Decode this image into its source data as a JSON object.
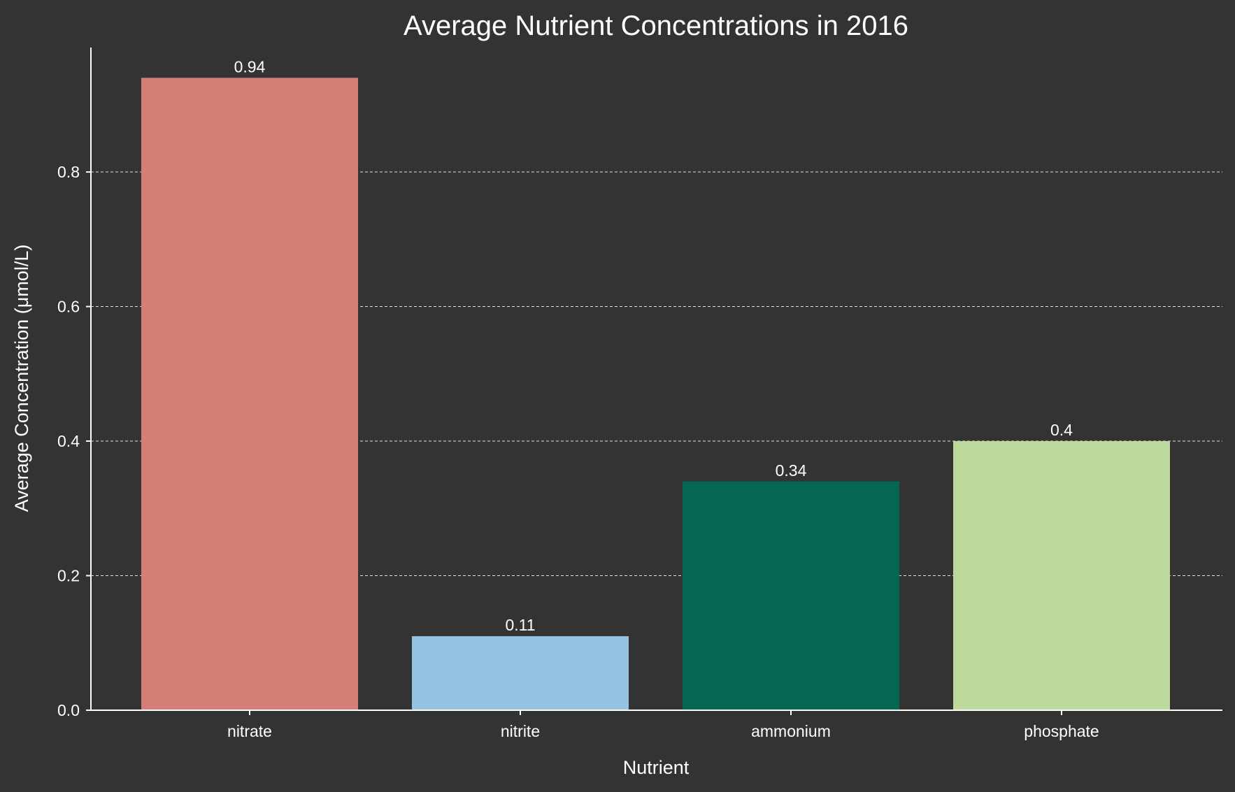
{
  "chart_data": {
    "type": "bar",
    "title": "Average Nutrient Concentrations in 2016",
    "xlabel": "Nutrient",
    "ylabel": "Average Concentration (μmol/L)",
    "categories": [
      "nitrate",
      "nitrite",
      "ammonium",
      "phosphate"
    ],
    "values": [
      0.94,
      0.11,
      0.34,
      0.4
    ],
    "data_labels": [
      "0.94",
      "0.11",
      "0.34",
      "0.4"
    ],
    "colors": [
      "#d37f77",
      "#96c3e3",
      "#036753",
      "#bdd89c"
    ],
    "ylim": [
      0,
      0.985
    ],
    "yticks": [
      0.0,
      0.2,
      0.4,
      0.6,
      0.8
    ],
    "ytick_labels": [
      "0.0",
      "0.2",
      "0.4",
      "0.6",
      "0.8"
    ],
    "grid": "y-dashed",
    "background": "#333333"
  }
}
